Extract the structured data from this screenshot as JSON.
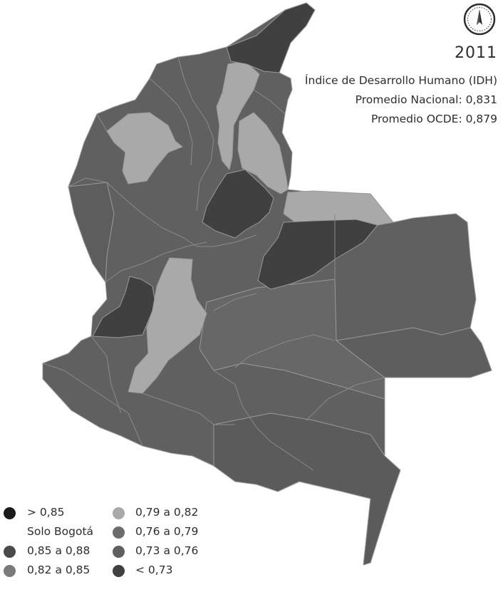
{
  "header": {
    "year": "2011",
    "index_name": "Índice de Desarrollo Humano (IDH)",
    "national_avg": "Promedio Nacional: 0,831",
    "oecd_avg": "Promedio OCDE: 0,879"
  },
  "compass": {
    "icon": "compass-rose-icon"
  },
  "colors": {
    "gt_085": "#1a1a1a",
    "c_085_088": "#4a4a4a",
    "c_082_085": "#7a7a7a",
    "c_079_082": "#a9a9a9",
    "c_076_079": "#6c6c6c",
    "c_073_076": "#5f5f5f",
    "lt_073": "#404040"
  },
  "legend": {
    "items": [
      {
        "label": "> 0,85",
        "color_key": "gt_085"
      },
      {
        "label": "Solo Bogotá",
        "color_key": null
      },
      {
        "label": "0,85 a 0,88",
        "color_key": "c_085_088"
      },
      {
        "label": "0,82 a 0,85",
        "color_key": "c_082_085"
      },
      {
        "label": "0,79 a 0,82",
        "color_key": "c_079_082"
      },
      {
        "label": "0,76 a 0,79",
        "color_key": "c_076_079"
      },
      {
        "label": "0,73 a 0,76",
        "color_key": "c_073_76"
      },
      {
        "label": "< 0,73",
        "color_key": "lt_073"
      }
    ]
  }
}
